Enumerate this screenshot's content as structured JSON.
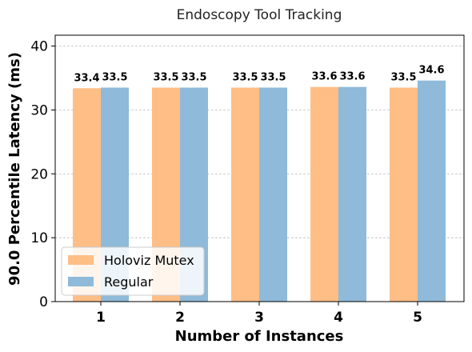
{
  "chart_data": {
    "type": "bar",
    "title": "Endoscopy Tool Tracking",
    "xlabel": "Number of Instances",
    "ylabel": "90.0 Percentile Latency (ms)",
    "categories": [
      "1",
      "2",
      "3",
      "4",
      "5"
    ],
    "series": [
      {
        "name": "Holoviz Mutex",
        "color": "#ffbe86",
        "values": [
          33.4,
          33.5,
          33.5,
          33.6,
          33.5
        ],
        "labels": [
          "33.4",
          "33.5",
          "33.5",
          "33.6",
          "33.5"
        ]
      },
      {
        "name": "Regular",
        "color": "#8fbad9",
        "values": [
          33.5,
          33.5,
          33.5,
          33.6,
          34.6
        ],
        "labels": [
          "33.5",
          "33.5",
          "33.5",
          "33.6",
          "34.6"
        ]
      }
    ],
    "ylim": [
      0,
      41.7
    ],
    "yticks": [
      "0",
      "10",
      "20",
      "30",
      "40"
    ],
    "ytick_values": [
      0,
      10,
      20,
      30,
      40
    ],
    "grid": "y, dashed",
    "legend": "lower-left"
  }
}
